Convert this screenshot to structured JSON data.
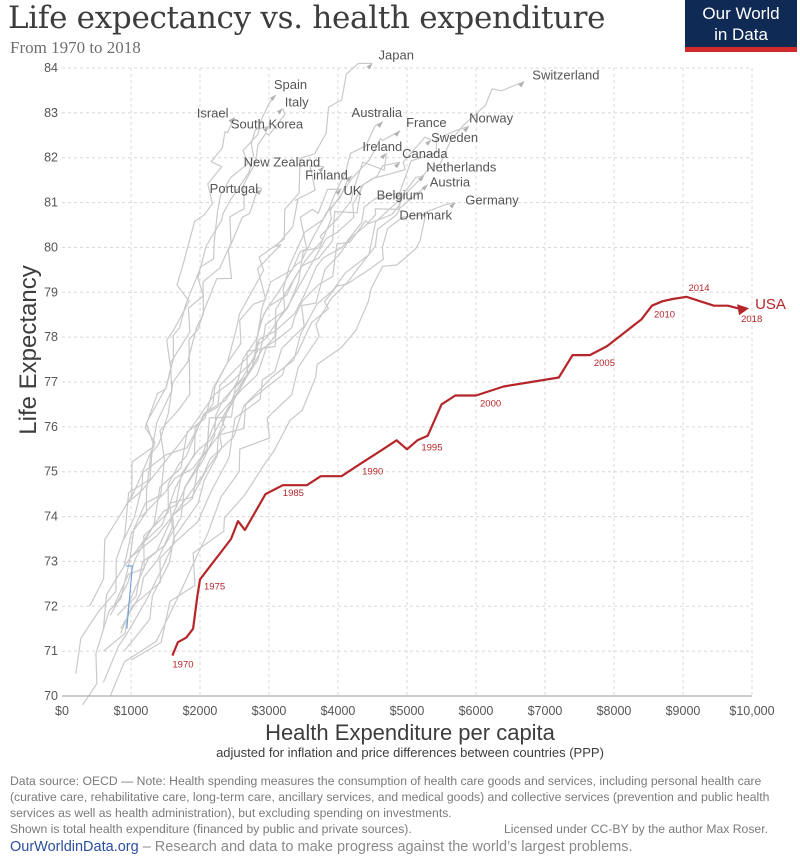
{
  "header": {
    "title": "Life expectancy vs. health expenditure",
    "subtitle": "From 1970 to 2018"
  },
  "logo": {
    "line1": "Our World",
    "line2": "in Data"
  },
  "footer": {
    "note": "Data source: OECD — Note: Health spending measures the consumption of health care goods and services, including personal health care (curative care, rehabilitative care, long-term care, ancillary services, and medical goods) and collective services (prevention and public health services as well as health administration), but excluding spending on investments.",
    "shown": "Shown is total health expenditure (financed by public and private sources).",
    "license": "Licensed under CC-BY by the author Max Roser.",
    "site": "OurWorldinData.org",
    "tagline": " – Research and data to make progress against the world’s largest problems."
  },
  "colors": {
    "usa": "#b5262a",
    "others": "#c9c9c9",
    "text": "#4a4a4a",
    "brand": "#0f2a54"
  },
  "chart_data": {
    "type": "line",
    "xlabel": "Health Expenditure per capita",
    "xsublabel": "adjusted for inflation and price differences between countries (PPP)",
    "ylabel": "Life Expectancy",
    "xlim": [
      0,
      10000
    ],
    "ylim": [
      70,
      84
    ],
    "xticks": [
      0,
      1000,
      2000,
      3000,
      4000,
      5000,
      6000,
      7000,
      8000,
      9000,
      10000
    ],
    "xtick_labels": [
      "$0",
      "$1000",
      "$2000",
      "$3000",
      "$4000",
      "$5000",
      "$6000",
      "$7000",
      "$8000",
      "$9000",
      "$10,000"
    ],
    "yticks": [
      70,
      71,
      72,
      73,
      74,
      75,
      76,
      77,
      78,
      79,
      80,
      81,
      82,
      83,
      84
    ],
    "grid": true,
    "highlight": {
      "name": "USA",
      "points": [
        [
          1600,
          70.9
        ],
        [
          1680,
          71.2
        ],
        [
          1800,
          71.3
        ],
        [
          1900,
          71.5
        ],
        [
          1960,
          72.2
        ],
        [
          2000,
          72.6
        ],
        [
          2150,
          72.9
        ],
        [
          2300,
          73.2
        ],
        [
          2450,
          73.5
        ],
        [
          2550,
          73.9
        ],
        [
          2650,
          73.7
        ],
        [
          2800,
          74.1
        ],
        [
          2950,
          74.5
        ],
        [
          3200,
          74.7
        ],
        [
          3550,
          74.7
        ],
        [
          3750,
          74.9
        ],
        [
          4050,
          74.9
        ],
        [
          4350,
          75.2
        ],
        [
          4650,
          75.5
        ],
        [
          4850,
          75.7
        ],
        [
          5000,
          75.5
        ],
        [
          5150,
          75.7
        ],
        [
          5300,
          75.8
        ],
        [
          5500,
          76.5
        ],
        [
          5700,
          76.7
        ],
        [
          6000,
          76.7
        ],
        [
          6400,
          76.9
        ],
        [
          6800,
          77.0
        ],
        [
          7200,
          77.1
        ],
        [
          7400,
          77.6
        ],
        [
          7650,
          77.6
        ],
        [
          7900,
          77.8
        ],
        [
          8150,
          78.1
        ],
        [
          8400,
          78.4
        ],
        [
          8550,
          78.7
        ],
        [
          8700,
          78.8
        ],
        [
          8850,
          78.85
        ],
        [
          9050,
          78.9
        ],
        [
          9250,
          78.8
        ],
        [
          9450,
          78.7
        ],
        [
          9650,
          78.7
        ],
        [
          9900,
          78.6
        ]
      ],
      "year_labels": [
        {
          "year": "1970",
          "x": 1600,
          "y": 70.9
        },
        {
          "year": "1975",
          "x": 2000,
          "y": 72.6
        },
        {
          "year": "1985",
          "x": 3200,
          "y": 74.7
        },
        {
          "year": "1990",
          "x": 4350,
          "y": 75.2
        },
        {
          "year": "1995",
          "x": 5150,
          "y": 75.7
        },
        {
          "year": "2000",
          "x": 6000,
          "y": 76.7
        },
        {
          "year": "2005",
          "x": 7650,
          "y": 77.6
        },
        {
          "year": "2010",
          "x": 8550,
          "y": 78.7
        },
        {
          "year": "2014",
          "x": 9050,
          "y": 78.9
        },
        {
          "year": "2018",
          "x": 9900,
          "y": 78.6
        }
      ]
    },
    "series": [
      {
        "name": "Japan",
        "end": [
          4500,
          84.1
        ],
        "start": [
          700,
          71.8
        ]
      },
      {
        "name": "Switzerland",
        "end": [
          6700,
          83.7
        ],
        "start": [
          1000,
          73.1
        ]
      },
      {
        "name": "Spain",
        "end": [
          3100,
          83.4
        ],
        "start": [
          400,
          72.0
        ]
      },
      {
        "name": "Italy",
        "end": [
          3200,
          83.1
        ],
        "start": [
          600,
          71.5
        ]
      },
      {
        "name": "Israel",
        "end": [
          2500,
          82.9
        ],
        "start": [
          900,
          73.5
        ]
      },
      {
        "name": "South Korea",
        "end": [
          3000,
          82.7
        ],
        "start": [
          200,
          70.5
        ]
      },
      {
        "name": "Australia",
        "end": [
          4650,
          82.8
        ],
        "start": [
          900,
          71.0
        ]
      },
      {
        "name": "France",
        "end": [
          4900,
          82.6
        ],
        "start": [
          800,
          71.8
        ]
      },
      {
        "name": "Norway",
        "end": [
          5900,
          82.7
        ],
        "start": [
          950,
          74.3
        ]
      },
      {
        "name": "Sweden",
        "end": [
          5350,
          82.4
        ],
        "start": [
          1000,
          74.4
        ]
      },
      {
        "name": "Ireland",
        "end": [
          4700,
          82.1
        ],
        "start": [
          600,
          71.0
        ]
      },
      {
        "name": "Canada",
        "end": [
          4900,
          81.9
        ],
        "start": [
          900,
          72.9
        ]
      },
      {
        "name": "New Zealand",
        "end": [
          3800,
          81.8
        ],
        "start": [
          850,
          71.5
        ]
      },
      {
        "name": "Netherlands",
        "end": [
          5250,
          81.6
        ],
        "start": [
          1150,
          74.0
        ]
      },
      {
        "name": "Finland",
        "end": [
          4200,
          81.6
        ],
        "start": [
          600,
          70.3
        ]
      },
      {
        "name": "Austria",
        "end": [
          5300,
          81.4
        ],
        "start": [
          700,
          70.0
        ]
      },
      {
        "name": "Portugal",
        "end": [
          2900,
          81.3
        ],
        "start": [
          300,
          69.8
        ]
      },
      {
        "name": "Belgium",
        "end": [
          4900,
          81.2
        ],
        "start": [
          850,
          71.4
        ]
      },
      {
        "name": "UK",
        "end": [
          4050,
          81.3
        ],
        "start": [
          750,
          72.0
        ]
      },
      {
        "name": "Denmark",
        "end": [
          5300,
          80.8
        ],
        "start": [
          1100,
          73.3
        ]
      },
      {
        "name": "Germany",
        "end": [
          5700,
          81.0
        ],
        "start": [
          1000,
          70.8
        ]
      }
    ]
  }
}
